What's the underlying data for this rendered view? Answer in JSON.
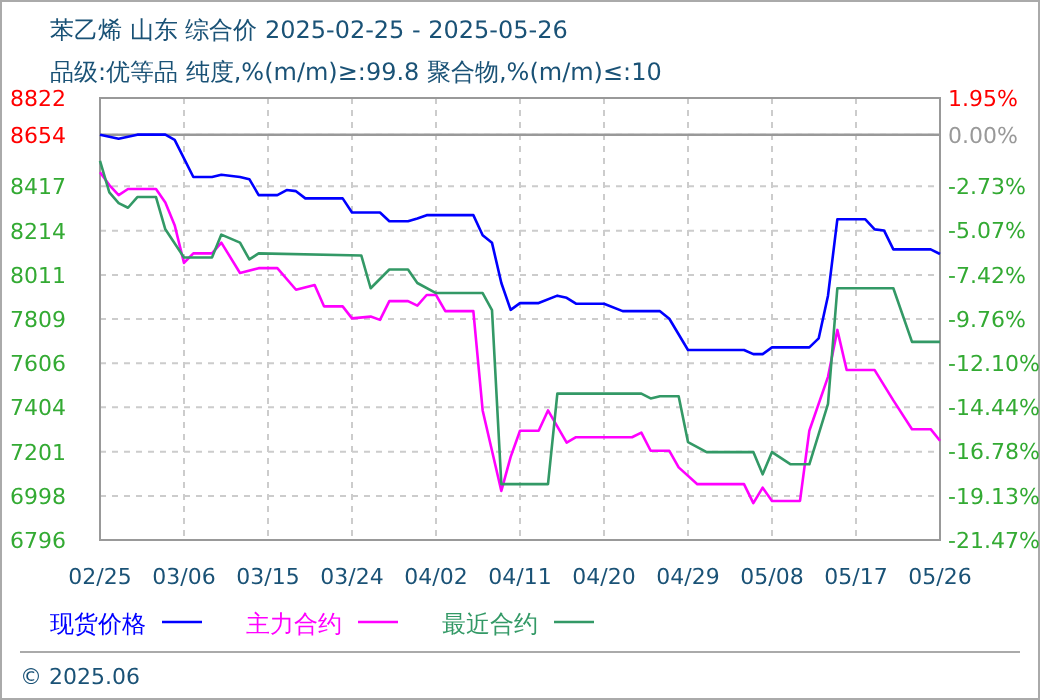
{
  "chart_data": {
    "type": "line",
    "title": "苯乙烯 山东 综合价 2025-02-25 - 2025-05-26",
    "subtitle": "品级:优等品 纯度,%(m/m)≥:99.8 聚合物,%(m/m)≤:10",
    "annotations": [
      "© 2025.06"
    ],
    "xlim": [
      "2025-02-25",
      "2025-05-26"
    ],
    "xticks": [
      {
        "value": "2025-02-25",
        "label": "02/25"
      },
      {
        "value": "2025-03-06",
        "label": "03/06"
      },
      {
        "value": "2025-03-15",
        "label": "03/15"
      },
      {
        "value": "2025-03-24",
        "label": "03/24"
      },
      {
        "value": "2025-04-02",
        "label": "04/02"
      },
      {
        "value": "2025-04-11",
        "label": "04/11"
      },
      {
        "value": "2025-04-20",
        "label": "04/20"
      },
      {
        "value": "2025-04-29",
        "label": "04/29"
      },
      {
        "value": "2025-05-08",
        "label": "05/08"
      },
      {
        "value": "2025-05-17",
        "label": "05/17"
      },
      {
        "value": "2025-05-26",
        "label": "05/26"
      }
    ],
    "ylim": [
      6796,
      8822
    ],
    "yticks": [
      6796,
      6998,
      7201,
      7404,
      7606,
      7809,
      8011,
      8214,
      8417,
      8654,
      8822
    ],
    "y2lim": [
      -21.47,
      1.95
    ],
    "y2ticks": [
      {
        "value": -21.47,
        "label": "-21.47%"
      },
      {
        "value": -19.13,
        "label": "-19.13%"
      },
      {
        "value": -16.78,
        "label": "-16.78%"
      },
      {
        "value": -14.44,
        "label": "-14.44%"
      },
      {
        "value": -12.1,
        "label": "-12.10%"
      },
      {
        "value": -9.76,
        "label": "-9.76%"
      },
      {
        "value": -7.42,
        "label": "-7.42%"
      },
      {
        "value": -5.07,
        "label": "-5.07%"
      },
      {
        "value": -2.73,
        "label": "-2.73%"
      },
      {
        "value": 0,
        "label": "0.00%"
      },
      {
        "value": 1.95,
        "label": "1.95%"
      }
    ],
    "ref_lines": [
      {
        "axis": "y2",
        "value": 0,
        "color": "#999999",
        "line_style": "solid"
      }
    ],
    "grid": true,
    "legend": "bottom",
    "marker": "none",
    "line_style": "solid",
    "series": [
      {
        "name": "现货价格",
        "color": "#0000ff",
        "x": [
          "2025-02-25",
          "2025-02-27",
          "2025-03-01",
          "2025-03-04",
          "2025-03-05",
          "2025-03-07",
          "2025-03-09",
          "2025-03-10",
          "2025-03-12",
          "2025-03-13",
          "2025-03-14",
          "2025-03-16",
          "2025-03-17",
          "2025-03-18",
          "2025-03-19",
          "2025-03-23",
          "2025-03-24",
          "2025-03-27",
          "2025-03-28",
          "2025-03-30",
          "2025-03-31",
          "2025-04-01",
          "2025-04-06",
          "2025-04-07",
          "2025-04-08",
          "2025-04-09",
          "2025-04-10",
          "2025-04-11",
          "2025-04-13",
          "2025-04-15",
          "2025-04-16",
          "2025-04-17",
          "2025-04-20",
          "2025-04-22",
          "2025-04-26",
          "2025-04-27",
          "2025-04-29",
          "2025-05-05",
          "2025-05-06",
          "2025-05-07",
          "2025-05-08",
          "2025-05-12",
          "2025-05-13",
          "2025-05-14",
          "2025-05-15",
          "2025-05-18",
          "2025-05-19",
          "2025-05-20",
          "2025-05-21",
          "2025-05-25",
          "2025-05-26"
        ],
        "values": [
          8654,
          8635,
          8654,
          8654,
          8630,
          8460,
          8460,
          8470,
          8460,
          8450,
          8377,
          8377,
          8400,
          8395,
          8362,
          8362,
          8297,
          8297,
          8257,
          8257,
          8270,
          8285,
          8285,
          8193,
          8158,
          7974,
          7851,
          7882,
          7882,
          7916,
          7906,
          7879,
          7879,
          7845,
          7845,
          7810,
          7667,
          7667,
          7648,
          7648,
          7679,
          7679,
          7720,
          7916,
          8266,
          8266,
          8220,
          8215,
          8128,
          8128,
          8107
        ]
      },
      {
        "name": "主力合约",
        "color": "#ff00ff",
        "x": [
          "2025-02-25",
          "2025-02-26",
          "2025-02-27",
          "2025-02-28",
          "2025-03-03",
          "2025-03-04",
          "2025-03-05",
          "2025-03-06",
          "2025-03-07",
          "2025-03-09",
          "2025-03-10",
          "2025-03-12",
          "2025-03-14",
          "2025-03-16",
          "2025-03-18",
          "2025-03-20",
          "2025-03-21",
          "2025-03-23",
          "2025-03-24",
          "2025-03-26",
          "2025-03-27",
          "2025-03-28",
          "2025-03-30",
          "2025-03-31",
          "2025-04-01",
          "2025-04-02",
          "2025-04-03",
          "2025-04-06",
          "2025-04-07",
          "2025-04-09",
          "2025-04-10",
          "2025-04-11",
          "2025-04-13",
          "2025-04-14",
          "2025-04-16",
          "2025-04-17",
          "2025-04-23",
          "2025-04-24",
          "2025-04-25",
          "2025-04-27",
          "2025-04-28",
          "2025-04-30",
          "2025-05-05",
          "2025-05-06",
          "2025-05-07",
          "2025-05-08",
          "2025-05-11",
          "2025-05-12",
          "2025-05-14",
          "2025-05-15",
          "2025-05-16",
          "2025-05-19",
          "2025-05-21",
          "2025-05-23",
          "2025-05-25",
          "2025-05-26"
        ],
        "values": [
          8482,
          8423,
          8377,
          8405,
          8405,
          8343,
          8239,
          8066,
          8110,
          8110,
          8159,
          8020,
          8042,
          8042,
          7943,
          7965,
          7867,
          7867,
          7812,
          7820,
          7805,
          7891,
          7891,
          7870,
          7919,
          7919,
          7845,
          7845,
          7390,
          7021,
          7177,
          7297,
          7297,
          7390,
          7242,
          7267,
          7267,
          7288,
          7205,
          7205,
          7129,
          7052,
          7052,
          6965,
          7036,
          6975,
          6975,
          7297,
          7544,
          7759,
          7575,
          7575,
          7436,
          7304,
          7304,
          7251
        ]
      },
      {
        "name": "最近合约",
        "color": "#339966",
        "x": [
          "2025-02-25",
          "2025-02-26",
          "2025-02-27",
          "2025-02-28",
          "2025-03-01",
          "2025-03-03",
          "2025-03-04",
          "2025-03-06",
          "2025-03-09",
          "2025-03-10",
          "2025-03-12",
          "2025-03-13",
          "2025-03-14",
          "2025-03-25",
          "2025-03-26",
          "2025-03-28",
          "2025-03-30",
          "2025-03-31",
          "2025-04-02",
          "2025-04-07",
          "2025-04-08",
          "2025-04-09",
          "2025-04-14",
          "2025-04-15",
          "2025-04-24",
          "2025-04-25",
          "2025-04-26",
          "2025-04-28",
          "2025-04-29",
          "2025-05-01",
          "2025-05-06",
          "2025-05-07",
          "2025-05-08",
          "2025-05-10",
          "2025-05-12",
          "2025-05-14",
          "2025-05-15",
          "2025-05-21",
          "2025-05-23",
          "2025-05-26"
        ],
        "values": [
          8534,
          8389,
          8340,
          8319,
          8368,
          8368,
          8220,
          8091,
          8091,
          8196,
          8159,
          8082,
          8110,
          8100,
          7950,
          8036,
          8036,
          7974,
          7928,
          7928,
          7850,
          7052,
          7052,
          7467,
          7467,
          7445,
          7455,
          7455,
          7245,
          7199,
          7199,
          7097,
          7199,
          7143,
          7143,
          7420,
          7950,
          7950,
          7704,
          7704
        ]
      }
    ]
  }
}
